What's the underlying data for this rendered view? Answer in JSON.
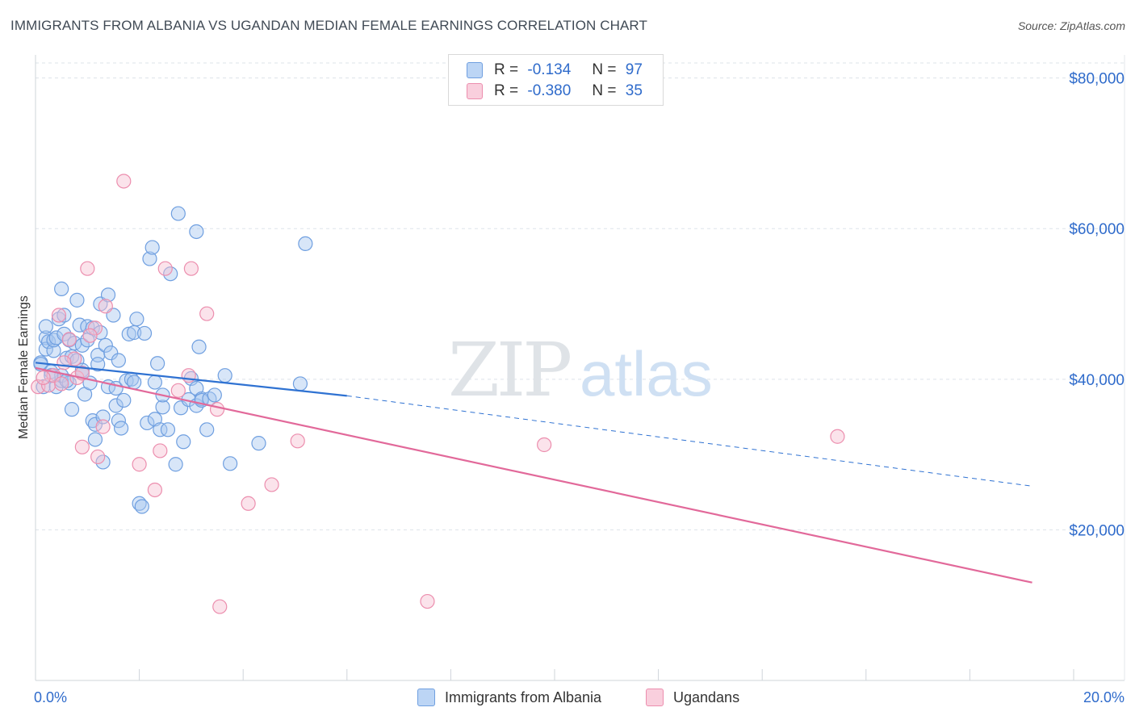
{
  "title": "IMMIGRANTS FROM ALBANIA VS UGANDAN MEDIAN FEMALE EARNINGS CORRELATION CHART",
  "source": "Source: ZipAtlas.com",
  "watermark": {
    "zip": "ZIP",
    "atlas": "atlas"
  },
  "colors": {
    "blue_fill": "#a9c8f0",
    "blue_stroke": "#6f9fe0",
    "blue_line": "#2f72d2",
    "pink_fill": "#f7c2d3",
    "pink_stroke": "#ec8eae",
    "pink_line": "#e2699a",
    "axis_label": "#2f6bcb",
    "grid": "#dde3ea"
  },
  "legend": {
    "r_label": "R =",
    "n_label": "N =",
    "series": [
      {
        "r": "-0.134",
        "n": "97"
      },
      {
        "r": "-0.380",
        "n": "35"
      }
    ]
  },
  "chart_data": {
    "type": "scatter",
    "title": "IMMIGRANTS FROM ALBANIA VS UGANDAN MEDIAN FEMALE EARNINGS CORRELATION CHART",
    "xlabel": "",
    "ylabel": "Median Female Earnings",
    "xlim": [
      0,
      20
    ],
    "ylim": [
      0,
      82000
    ],
    "x_tick_labels": [
      "0.0%",
      "20.0%"
    ],
    "y_ticks": [
      20000,
      40000,
      60000,
      80000
    ],
    "y_tick_labels": [
      "$20,000",
      "$40,000",
      "$60,000",
      "$80,000"
    ],
    "grid": true,
    "series": [
      {
        "name": "Immigrants from Albania",
        "color": "blue",
        "trend": {
          "x0": 0,
          "y0": 42200,
          "x1": 6.0,
          "y1": 37800,
          "dash_x1": 19.2,
          "dash_y1": 25800
        },
        "points": [
          [
            0.1,
            42200
          ],
          [
            0.1,
            42000
          ],
          [
            0.15,
            39000
          ],
          [
            0.2,
            45500
          ],
          [
            0.2,
            44000
          ],
          [
            0.2,
            47000
          ],
          [
            0.25,
            45000
          ],
          [
            0.3,
            41000
          ],
          [
            0.35,
            43800
          ],
          [
            0.35,
            45200
          ],
          [
            0.4,
            45500
          ],
          [
            0.4,
            39000
          ],
          [
            0.45,
            48000
          ],
          [
            0.5,
            52000
          ],
          [
            0.5,
            39800
          ],
          [
            0.5,
            40500
          ],
          [
            0.55,
            46000
          ],
          [
            0.55,
            48500
          ],
          [
            0.6,
            42800
          ],
          [
            0.65,
            45200
          ],
          [
            0.65,
            39500
          ],
          [
            0.7,
            43000
          ],
          [
            0.7,
            36000
          ],
          [
            0.75,
            44800
          ],
          [
            0.8,
            50500
          ],
          [
            0.8,
            42500
          ],
          [
            0.85,
            47200
          ],
          [
            0.9,
            44500
          ],
          [
            0.9,
            41200
          ],
          [
            0.95,
            38000
          ],
          [
            1.0,
            45200
          ],
          [
            1.0,
            47000
          ],
          [
            1.05,
            39500
          ],
          [
            1.1,
            46800
          ],
          [
            1.1,
            34500
          ],
          [
            1.15,
            32000
          ],
          [
            1.15,
            34000
          ],
          [
            1.2,
            43200
          ],
          [
            1.2,
            42000
          ],
          [
            1.25,
            50000
          ],
          [
            1.25,
            46200
          ],
          [
            1.3,
            35000
          ],
          [
            1.3,
            29000
          ],
          [
            1.35,
            44500
          ],
          [
            1.4,
            39000
          ],
          [
            1.4,
            51200
          ],
          [
            1.45,
            43500
          ],
          [
            1.5,
            48500
          ],
          [
            1.55,
            36500
          ],
          [
            1.55,
            38800
          ],
          [
            1.6,
            42500
          ],
          [
            1.6,
            34500
          ],
          [
            1.65,
            33500
          ],
          [
            1.7,
            37200
          ],
          [
            1.75,
            39800
          ],
          [
            1.8,
            46000
          ],
          [
            1.85,
            40000
          ],
          [
            1.9,
            46200
          ],
          [
            1.9,
            39600
          ],
          [
            1.95,
            48000
          ],
          [
            2.0,
            23500
          ],
          [
            2.05,
            23100
          ],
          [
            2.1,
            46100
          ],
          [
            2.15,
            34200
          ],
          [
            2.2,
            56000
          ],
          [
            2.25,
            57500
          ],
          [
            2.3,
            34700
          ],
          [
            2.3,
            39600
          ],
          [
            2.35,
            42100
          ],
          [
            2.4,
            33300
          ],
          [
            2.45,
            36300
          ],
          [
            2.45,
            37900
          ],
          [
            2.55,
            33300
          ],
          [
            2.6,
            54000
          ],
          [
            2.7,
            28700
          ],
          [
            2.75,
            62000
          ],
          [
            2.8,
            36200
          ],
          [
            2.85,
            31700
          ],
          [
            2.95,
            37300
          ],
          [
            3.0,
            40100
          ],
          [
            3.1,
            38800
          ],
          [
            3.1,
            36500
          ],
          [
            3.2,
            37400
          ],
          [
            3.1,
            59600
          ],
          [
            3.15,
            44300
          ],
          [
            3.2,
            37200
          ],
          [
            3.3,
            33300
          ],
          [
            3.35,
            37400
          ],
          [
            3.45,
            37900
          ],
          [
            3.65,
            40500
          ],
          [
            3.75,
            28800
          ],
          [
            4.3,
            31500
          ],
          [
            5.1,
            39400
          ],
          [
            5.2,
            58000
          ],
          [
            0.3,
            40500
          ],
          [
            0.6,
            39800
          ],
          [
            0.9,
            40800
          ]
        ]
      },
      {
        "name": "Ugandans",
        "color": "pink",
        "trend": {
          "x0": 0,
          "y0": 41500,
          "x1": 19.2,
          "y1": 13000
        },
        "points": [
          [
            0.05,
            39000
          ],
          [
            0.25,
            39200
          ],
          [
            0.35,
            40500
          ],
          [
            0.45,
            48500
          ],
          [
            0.5,
            39400
          ],
          [
            0.65,
            45300
          ],
          [
            0.75,
            42700
          ],
          [
            0.8,
            40200
          ],
          [
            0.9,
            40800
          ],
          [
            0.9,
            31000
          ],
          [
            1.0,
            54700
          ],
          [
            1.15,
            46800
          ],
          [
            1.2,
            29700
          ],
          [
            1.3,
            33700
          ],
          [
            1.35,
            49700
          ],
          [
            1.7,
            66300
          ],
          [
            2.0,
            28700
          ],
          [
            2.3,
            25300
          ],
          [
            2.4,
            30500
          ],
          [
            2.5,
            54700
          ],
          [
            2.75,
            38500
          ],
          [
            2.95,
            40500
          ],
          [
            3.0,
            54700
          ],
          [
            3.3,
            48700
          ],
          [
            3.5,
            36000
          ],
          [
            3.55,
            9800
          ],
          [
            4.1,
            23500
          ],
          [
            4.55,
            26000
          ],
          [
            5.05,
            31800
          ],
          [
            7.55,
            10500
          ],
          [
            9.8,
            31300
          ],
          [
            15.45,
            32400
          ],
          [
            0.15,
            40200
          ],
          [
            0.55,
            42200
          ],
          [
            1.05,
            45800
          ]
        ]
      }
    ]
  },
  "bottom_legend": [
    "Immigrants from Albania",
    "Ugandans"
  ]
}
